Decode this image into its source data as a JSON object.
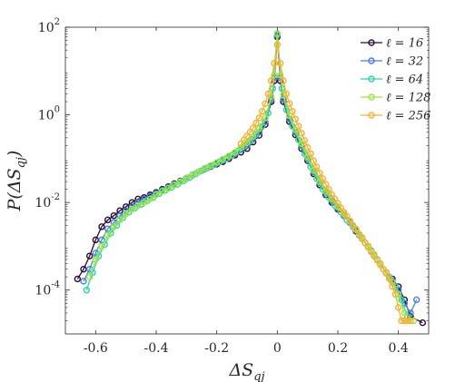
{
  "chart_data": {
    "type": "line",
    "xlabel": "ΔS_qj",
    "ylabel": "P(ΔS_qj)",
    "yscale": "log",
    "xlim": [
      -0.7,
      0.5
    ],
    "ylim": [
      1e-05,
      100
    ],
    "x_ticks": [
      -0.6,
      -0.4,
      -0.2,
      0,
      0.2,
      0.4
    ],
    "x_tick_labels": [
      "-0.6",
      "-0.4",
      "-0.2",
      "0",
      "0.2",
      "0.4"
    ],
    "y_ticks": [
      0.0001,
      0.01,
      1,
      100
    ],
    "y_tick_labels": [
      {
        "base": "10",
        "exp": "-4"
      },
      {
        "base": "10",
        "exp": "-2"
      },
      {
        "base": "10",
        "exp": "0"
      },
      {
        "base": "10",
        "exp": "2"
      }
    ],
    "grid": false,
    "legend_position": "top-right",
    "series": [
      {
        "name": "ℓ = 16",
        "color": "#2a0b3a",
        "points": [
          [
            -0.66,
            0.00018
          ],
          [
            -0.64,
            0.0003
          ],
          [
            -0.62,
            0.0006
          ],
          [
            -0.6,
            0.0014
          ],
          [
            -0.58,
            0.0028
          ],
          [
            -0.56,
            0.004
          ],
          [
            -0.54,
            0.005
          ],
          [
            -0.52,
            0.0065
          ],
          [
            -0.5,
            0.008
          ],
          [
            -0.48,
            0.01
          ],
          [
            -0.46,
            0.012
          ],
          [
            -0.44,
            0.013
          ],
          [
            -0.42,
            0.015
          ],
          [
            -0.4,
            0.017
          ],
          [
            -0.38,
            0.02
          ],
          [
            -0.36,
            0.023
          ],
          [
            -0.34,
            0.027
          ],
          [
            -0.32,
            0.031
          ],
          [
            -0.3,
            0.036
          ],
          [
            -0.28,
            0.043
          ],
          [
            -0.26,
            0.05
          ],
          [
            -0.24,
            0.058
          ],
          [
            -0.22,
            0.066
          ],
          [
            -0.2,
            0.075
          ],
          [
            -0.18,
            0.085
          ],
          [
            -0.16,
            0.1
          ],
          [
            -0.14,
            0.12
          ],
          [
            -0.12,
            0.14
          ],
          [
            -0.1,
            0.17
          ],
          [
            -0.08,
            0.24
          ],
          [
            -0.06,
            0.34
          ],
          [
            -0.04,
            0.6
          ],
          [
            -0.02,
            2
          ],
          [
            -0.01,
            6
          ],
          [
            0,
            60
          ],
          [
            0.01,
            6
          ],
          [
            0.02,
            2
          ],
          [
            0.04,
            0.7
          ],
          [
            0.06,
            0.35
          ],
          [
            0.08,
            0.17
          ],
          [
            0.1,
            0.09
          ],
          [
            0.12,
            0.045
          ],
          [
            0.14,
            0.025
          ],
          [
            0.16,
            0.015
          ],
          [
            0.18,
            0.01
          ],
          [
            0.2,
            0.007
          ],
          [
            0.22,
            0.005
          ],
          [
            0.24,
            0.0035
          ],
          [
            0.26,
            0.0022
          ],
          [
            0.28,
            0.0015
          ],
          [
            0.3,
            0.001
          ],
          [
            0.32,
            0.0006
          ],
          [
            0.34,
            0.0004
          ],
          [
            0.36,
            0.00025
          ],
          [
            0.38,
            0.00018
          ],
          [
            0.4,
            0.00012
          ],
          [
            0.42,
            6e-05
          ],
          [
            0.44,
            2.5e-05
          ],
          [
            0.48,
            1.8e-05
          ]
        ]
      },
      {
        "name": "ℓ = 32",
        "color": "#4a7fe0",
        "points": [
          [
            -0.64,
            0.00016
          ],
          [
            -0.62,
            0.0003
          ],
          [
            -0.6,
            0.0007
          ],
          [
            -0.58,
            0.0014
          ],
          [
            -0.56,
            0.0025
          ],
          [
            -0.54,
            0.0035
          ],
          [
            -0.52,
            0.005
          ],
          [
            -0.5,
            0.0065
          ],
          [
            -0.48,
            0.008
          ],
          [
            -0.46,
            0.01
          ],
          [
            -0.44,
            0.012
          ],
          [
            -0.42,
            0.014
          ],
          [
            -0.4,
            0.016
          ],
          [
            -0.38,
            0.019
          ],
          [
            -0.36,
            0.022
          ],
          [
            -0.34,
            0.026
          ],
          [
            -0.32,
            0.03
          ],
          [
            -0.3,
            0.035
          ],
          [
            -0.28,
            0.042
          ],
          [
            -0.26,
            0.05
          ],
          [
            -0.24,
            0.058
          ],
          [
            -0.22,
            0.067
          ],
          [
            -0.2,
            0.078
          ],
          [
            -0.18,
            0.09
          ],
          [
            -0.16,
            0.11
          ],
          [
            -0.14,
            0.13
          ],
          [
            -0.12,
            0.16
          ],
          [
            -0.1,
            0.2
          ],
          [
            -0.08,
            0.28
          ],
          [
            -0.06,
            0.4
          ],
          [
            -0.04,
            0.7
          ],
          [
            -0.02,
            2.2
          ],
          [
            -0.01,
            7
          ],
          [
            0,
            65
          ],
          [
            0.01,
            7
          ],
          [
            0.02,
            2.3
          ],
          [
            0.04,
            0.8
          ],
          [
            0.06,
            0.4
          ],
          [
            0.08,
            0.2
          ],
          [
            0.1,
            0.1
          ],
          [
            0.12,
            0.05
          ],
          [
            0.14,
            0.028
          ],
          [
            0.16,
            0.017
          ],
          [
            0.18,
            0.011
          ],
          [
            0.2,
            0.0075
          ],
          [
            0.22,
            0.005
          ],
          [
            0.24,
            0.0035
          ],
          [
            0.26,
            0.0023
          ],
          [
            0.28,
            0.0015
          ],
          [
            0.3,
            0.001
          ],
          [
            0.32,
            0.0006
          ],
          [
            0.34,
            0.0004
          ],
          [
            0.36,
            0.00025
          ],
          [
            0.38,
            0.00016
          ],
          [
            0.4,
            0.0001
          ],
          [
            0.42,
            5e-05
          ],
          [
            0.44,
            3e-05
          ],
          [
            0.46,
            6e-05
          ]
        ]
      },
      {
        "name": "ℓ = 64",
        "color": "#2ed3a8",
        "points": [
          [
            -0.63,
            0.0001
          ],
          [
            -0.61,
            0.00025
          ],
          [
            -0.59,
            0.0006
          ],
          [
            -0.57,
            0.0011
          ],
          [
            -0.55,
            0.002
          ],
          [
            -0.53,
            0.003
          ],
          [
            -0.51,
            0.0045
          ],
          [
            -0.49,
            0.006
          ],
          [
            -0.47,
            0.0075
          ],
          [
            -0.45,
            0.009
          ],
          [
            -0.43,
            0.011
          ],
          [
            -0.41,
            0.013
          ],
          [
            -0.39,
            0.016
          ],
          [
            -0.37,
            0.019
          ],
          [
            -0.35,
            0.022
          ],
          [
            -0.33,
            0.026
          ],
          [
            -0.31,
            0.031
          ],
          [
            -0.29,
            0.037
          ],
          [
            -0.27,
            0.045
          ],
          [
            -0.25,
            0.053
          ],
          [
            -0.23,
            0.062
          ],
          [
            -0.21,
            0.072
          ],
          [
            -0.19,
            0.085
          ],
          [
            -0.17,
            0.1
          ],
          [
            -0.15,
            0.12
          ],
          [
            -0.13,
            0.15
          ],
          [
            -0.11,
            0.19
          ],
          [
            -0.09,
            0.25
          ],
          [
            -0.07,
            0.36
          ],
          [
            -0.05,
            0.55
          ],
          [
            -0.03,
            1.1
          ],
          [
            -0.015,
            4
          ],
          [
            0,
            70
          ],
          [
            0.015,
            4
          ],
          [
            0.03,
            1.3
          ],
          [
            0.05,
            0.55
          ],
          [
            0.07,
            0.27
          ],
          [
            0.09,
            0.13
          ],
          [
            0.11,
            0.065
          ],
          [
            0.13,
            0.035
          ],
          [
            0.15,
            0.02
          ],
          [
            0.17,
            0.013
          ],
          [
            0.19,
            0.0085
          ],
          [
            0.21,
            0.006
          ],
          [
            0.23,
            0.004
          ],
          [
            0.25,
            0.0028
          ],
          [
            0.27,
            0.0018
          ],
          [
            0.29,
            0.0012
          ],
          [
            0.31,
            0.0008
          ],
          [
            0.33,
            0.0005
          ],
          [
            0.35,
            0.0003
          ],
          [
            0.37,
            0.0002
          ],
          [
            0.39,
            0.00012
          ],
          [
            0.41,
            6e-05
          ],
          [
            0.43,
            2.5e-05
          ]
        ]
      },
      {
        "name": "ℓ = 128",
        "color": "#9ee640",
        "points": [
          [
            -0.62,
            0.0002
          ],
          [
            -0.6,
            0.0005
          ],
          [
            -0.58,
            0.001
          ],
          [
            -0.56,
            0.0018
          ],
          [
            -0.54,
            0.0028
          ],
          [
            -0.52,
            0.004
          ],
          [
            -0.5,
            0.0055
          ],
          [
            -0.48,
            0.007
          ],
          [
            -0.46,
            0.0085
          ],
          [
            -0.44,
            0.01
          ],
          [
            -0.42,
            0.012
          ],
          [
            -0.4,
            0.015
          ],
          [
            -0.38,
            0.018
          ],
          [
            -0.36,
            0.021
          ],
          [
            -0.34,
            0.025
          ],
          [
            -0.32,
            0.03
          ],
          [
            -0.3,
            0.036
          ],
          [
            -0.28,
            0.043
          ],
          [
            -0.26,
            0.05
          ],
          [
            -0.24,
            0.06
          ],
          [
            -0.22,
            0.07
          ],
          [
            -0.2,
            0.082
          ],
          [
            -0.18,
            0.097
          ],
          [
            -0.16,
            0.115
          ],
          [
            -0.14,
            0.14
          ],
          [
            -0.12,
            0.18
          ],
          [
            -0.1,
            0.23
          ],
          [
            -0.08,
            0.32
          ],
          [
            -0.06,
            0.48
          ],
          [
            -0.04,
            0.85
          ],
          [
            -0.02,
            2.6
          ],
          [
            -0.01,
            8
          ],
          [
            0,
            72
          ],
          [
            0.01,
            8
          ],
          [
            0.02,
            2.8
          ],
          [
            0.04,
            0.95
          ],
          [
            0.06,
            0.45
          ],
          [
            0.08,
            0.22
          ],
          [
            0.1,
            0.11
          ],
          [
            0.12,
            0.055
          ],
          [
            0.14,
            0.03
          ],
          [
            0.16,
            0.018
          ],
          [
            0.18,
            0.012
          ],
          [
            0.2,
            0.008
          ],
          [
            0.22,
            0.0055
          ],
          [
            0.24,
            0.0037
          ],
          [
            0.26,
            0.0025
          ],
          [
            0.28,
            0.0016
          ],
          [
            0.3,
            0.001
          ],
          [
            0.32,
            0.00065
          ],
          [
            0.34,
            0.0004
          ],
          [
            0.36,
            0.00025
          ],
          [
            0.38,
            0.00015
          ],
          [
            0.4,
            8e-05
          ],
          [
            0.42,
            3e-05
          ],
          [
            0.45,
            2e-05
          ]
        ]
      },
      {
        "name": "ℓ = 256",
        "color": "#f2b232",
        "points": [
          [
            -0.12,
            0.22
          ],
          [
            -0.11,
            0.27
          ],
          [
            -0.1,
            0.33
          ],
          [
            -0.09,
            0.4
          ],
          [
            -0.08,
            0.5
          ],
          [
            -0.07,
            0.65
          ],
          [
            -0.06,
            0.85
          ],
          [
            -0.05,
            1.2
          ],
          [
            -0.04,
            1.8
          ],
          [
            -0.03,
            3
          ],
          [
            -0.02,
            6
          ],
          [
            -0.01,
            15
          ],
          [
            0,
            40
          ],
          [
            0.01,
            15
          ],
          [
            0.02,
            6
          ],
          [
            0.03,
            3
          ],
          [
            0.04,
            1.8
          ],
          [
            0.05,
            1.2
          ],
          [
            0.06,
            0.8
          ],
          [
            0.07,
            0.55
          ],
          [
            0.08,
            0.38
          ],
          [
            0.09,
            0.26
          ],
          [
            0.1,
            0.18
          ],
          [
            0.11,
            0.13
          ],
          [
            0.12,
            0.09
          ],
          [
            0.13,
            0.065
          ],
          [
            0.14,
            0.047
          ],
          [
            0.15,
            0.035
          ],
          [
            0.16,
            0.026
          ],
          [
            0.17,
            0.02
          ],
          [
            0.18,
            0.015
          ],
          [
            0.19,
            0.012
          ],
          [
            0.2,
            0.0095
          ],
          [
            0.21,
            0.0075
          ],
          [
            0.22,
            0.006
          ],
          [
            0.23,
            0.0048
          ],
          [
            0.24,
            0.0038
          ],
          [
            0.25,
            0.003
          ],
          [
            0.26,
            0.0024
          ],
          [
            0.27,
            0.0019
          ],
          [
            0.28,
            0.0015
          ],
          [
            0.29,
            0.0012
          ],
          [
            0.3,
            0.00095
          ],
          [
            0.31,
            0.00075
          ],
          [
            0.32,
            0.0006
          ],
          [
            0.33,
            0.00048
          ],
          [
            0.34,
            0.00038
          ],
          [
            0.35,
            0.0003
          ],
          [
            0.36,
            0.00024
          ],
          [
            0.37,
            0.00018
          ],
          [
            0.38,
            0.00012
          ],
          [
            0.39,
            8e-05
          ],
          [
            0.4,
            4e-05
          ],
          [
            0.41,
            2e-05
          ],
          [
            0.42,
            2e-05
          ],
          [
            0.43,
            2e-05
          ],
          [
            0.44,
            2e-05
          ]
        ]
      }
    ]
  }
}
